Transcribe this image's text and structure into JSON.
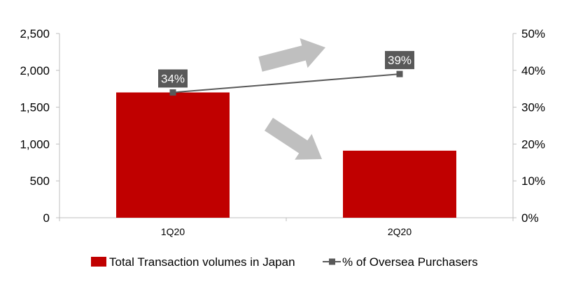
{
  "chart_data": {
    "type": "bar",
    "categories": [
      "1Q20",
      "2Q20"
    ],
    "series": [
      {
        "name": "Total Transaction volumes in Japan",
        "kind": "bar",
        "axis": "left",
        "color": "#c00000",
        "values": [
          1700,
          910
        ]
      },
      {
        "name": "% of Oversea Purchasers",
        "kind": "line",
        "axis": "right",
        "color": "#595959",
        "values": [
          34,
          39
        ],
        "data_labels": [
          "34%",
          "39%"
        ]
      }
    ],
    "y_left": {
      "min": 0,
      "max": 2500,
      "ticks": [
        0,
        500,
        1000,
        1500,
        2000,
        2500
      ],
      "tick_labels": [
        "0",
        "500",
        "1,000",
        "1,500",
        "2,000",
        "2,500"
      ]
    },
    "y_right": {
      "min": 0,
      "max": 50,
      "ticks": [
        0,
        10,
        20,
        30,
        40,
        50
      ],
      "tick_labels": [
        "0%",
        "10%",
        "20%",
        "30%",
        "40%",
        "50%"
      ]
    },
    "grid": false,
    "legend_position": "bottom",
    "annotations": [
      {
        "kind": "arrow",
        "direction": "up-right",
        "color": "#bfbfbf"
      },
      {
        "kind": "arrow",
        "direction": "down-right",
        "color": "#bfbfbf"
      }
    ],
    "title": "",
    "xlabel": "",
    "ylabel": ""
  }
}
